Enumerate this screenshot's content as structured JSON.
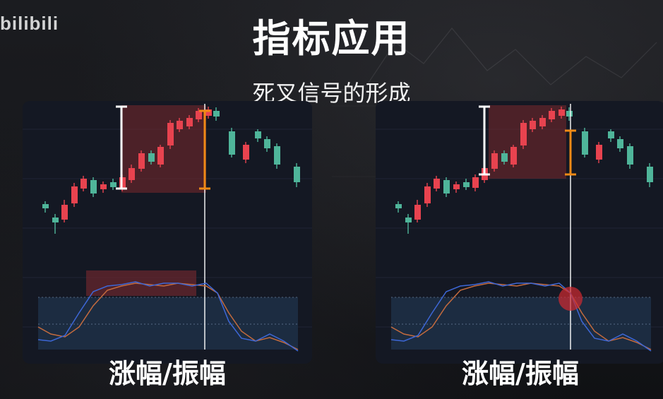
{
  "watermark": {
    "logo": "bilibili"
  },
  "title": "指标应用",
  "subtitle": "死叉信号的形成",
  "panels": [
    {
      "caption": "涨幅/振幅"
    },
    {
      "caption": "涨幅/振幅"
    }
  ],
  "colors": {
    "up": "#e8434f",
    "down": "#4fb59a",
    "range_box": "#7a2a2e",
    "oversold_zone": "#1d3047",
    "k_line": "#3d67d6",
    "d_line": "#c46b3e",
    "amplitude_bracket": "#f08a16",
    "rise_bracket": "#ffffff",
    "cross_marker": "#d22a30"
  }
}
